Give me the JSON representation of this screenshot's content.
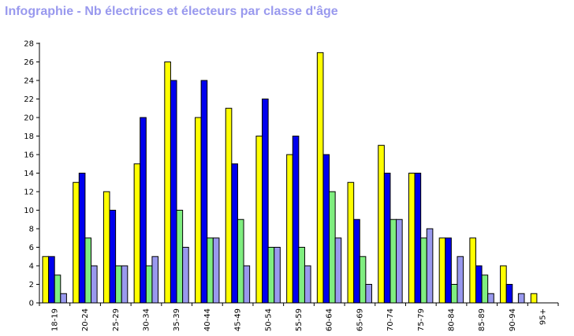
{
  "chart_data": {
    "type": "bar",
    "title": "Infographie - Nb électrices et électeurs par classe d'âge",
    "xlabel": "",
    "ylabel": "",
    "ylim": [
      0,
      28
    ],
    "yticks": [
      0,
      2,
      4,
      6,
      8,
      10,
      12,
      14,
      16,
      18,
      20,
      22,
      24,
      26,
      28
    ],
    "grid": false,
    "legend": "none",
    "categories": [
      "18-19",
      "20-24",
      "25-29",
      "30-34",
      "35-39",
      "40-44",
      "45-49",
      "50-54",
      "55-59",
      "60-64",
      "65-69",
      "70-74",
      "75-79",
      "80-84",
      "85-89",
      "90-94",
      "95+"
    ],
    "series": [
      {
        "color": "#ffff00",
        "values": [
          5,
          13,
          12,
          15,
          26,
          20,
          21,
          18,
          16,
          27,
          13,
          17,
          14,
          7,
          7,
          4,
          1
        ]
      },
      {
        "color": "#0000ee",
        "values": [
          5,
          14,
          10,
          20,
          24,
          24,
          15,
          22,
          18,
          16,
          9,
          14,
          14,
          7,
          4,
          2,
          0
        ]
      },
      {
        "color": "#80ee80",
        "values": [
          3,
          7,
          4,
          4,
          10,
          7,
          9,
          6,
          6,
          12,
          5,
          9,
          7,
          2,
          3,
          0,
          0
        ]
      },
      {
        "color": "#9999ee",
        "values": [
          1,
          4,
          4,
          5,
          6,
          7,
          4,
          6,
          4,
          7,
          2,
          9,
          8,
          5,
          1,
          1,
          0
        ]
      }
    ]
  }
}
